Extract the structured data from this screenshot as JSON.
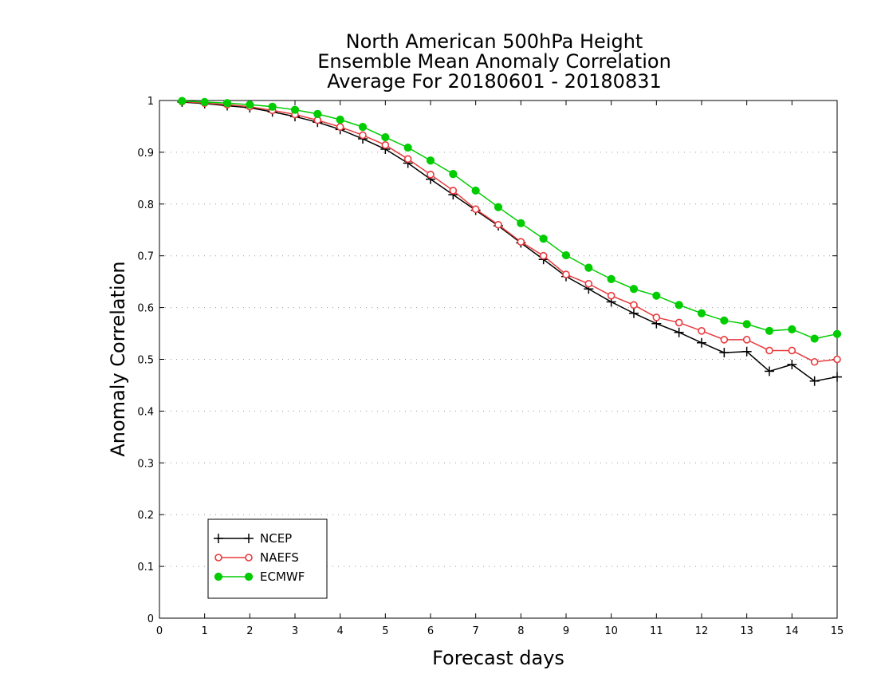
{
  "chart_data": {
    "type": "line",
    "title_lines": [
      "North American 500hPa Height",
      "Ensemble Mean Anomaly Correlation",
      "Average For 20180601 - 20180831"
    ],
    "xlabel": "Forecast days",
    "ylabel": "Anomaly Correlation",
    "xlim": [
      0,
      15
    ],
    "ylim": [
      0,
      1
    ],
    "x_ticks": [
      "0",
      "1",
      "2",
      "3",
      "4",
      "5",
      "6",
      "7",
      "8",
      "9",
      "10",
      "11",
      "12",
      "13",
      "14",
      "15"
    ],
    "y_ticks": [
      "0",
      "0.1",
      "0.2",
      "0.3",
      "0.4",
      "0.5",
      "0.6",
      "0.7",
      "0.8",
      "0.9",
      "1"
    ],
    "grid": true,
    "legend_position": "bottom-left",
    "x": [
      0.5,
      1,
      1.5,
      2,
      2.5,
      3,
      3.5,
      4,
      4.5,
      5,
      5.5,
      6,
      6.5,
      7,
      7.5,
      8,
      8.5,
      9,
      9.5,
      10,
      10.5,
      11,
      11.5,
      12,
      12.5,
      13,
      13.5,
      14,
      14.5,
      15
    ],
    "series": [
      {
        "name": "NCEP",
        "color": "#000000",
        "marker": "plus",
        "values": [
          0.997,
          0.994,
          0.99,
          0.986,
          0.978,
          0.969,
          0.958,
          0.944,
          0.926,
          0.906,
          0.879,
          0.848,
          0.818,
          0.788,
          0.758,
          0.725,
          0.693,
          0.66,
          0.636,
          0.611,
          0.589,
          0.569,
          0.552,
          0.532,
          0.513,
          0.515,
          0.477,
          0.49,
          0.458,
          0.466
        ]
      },
      {
        "name": "NAEFS",
        "color": "#e8393c",
        "marker": "open-circle",
        "values": [
          0.998,
          0.995,
          0.992,
          0.988,
          0.981,
          0.973,
          0.962,
          0.949,
          0.933,
          0.914,
          0.887,
          0.857,
          0.826,
          0.79,
          0.76,
          0.727,
          0.7,
          0.664,
          0.646,
          0.623,
          0.605,
          0.581,
          0.571,
          0.555,
          0.538,
          0.538,
          0.517,
          0.517,
          0.495,
          0.5
        ]
      },
      {
        "name": "ECMWF",
        "color": "#00cc00",
        "marker": "filled-circle",
        "values": [
          0.999,
          0.997,
          0.995,
          0.992,
          0.988,
          0.982,
          0.974,
          0.963,
          0.949,
          0.929,
          0.909,
          0.884,
          0.858,
          0.826,
          0.794,
          0.763,
          0.733,
          0.701,
          0.677,
          0.655,
          0.636,
          0.623,
          0.605,
          0.589,
          0.575,
          0.568,
          0.555,
          0.558,
          0.54,
          0.549
        ]
      }
    ]
  }
}
